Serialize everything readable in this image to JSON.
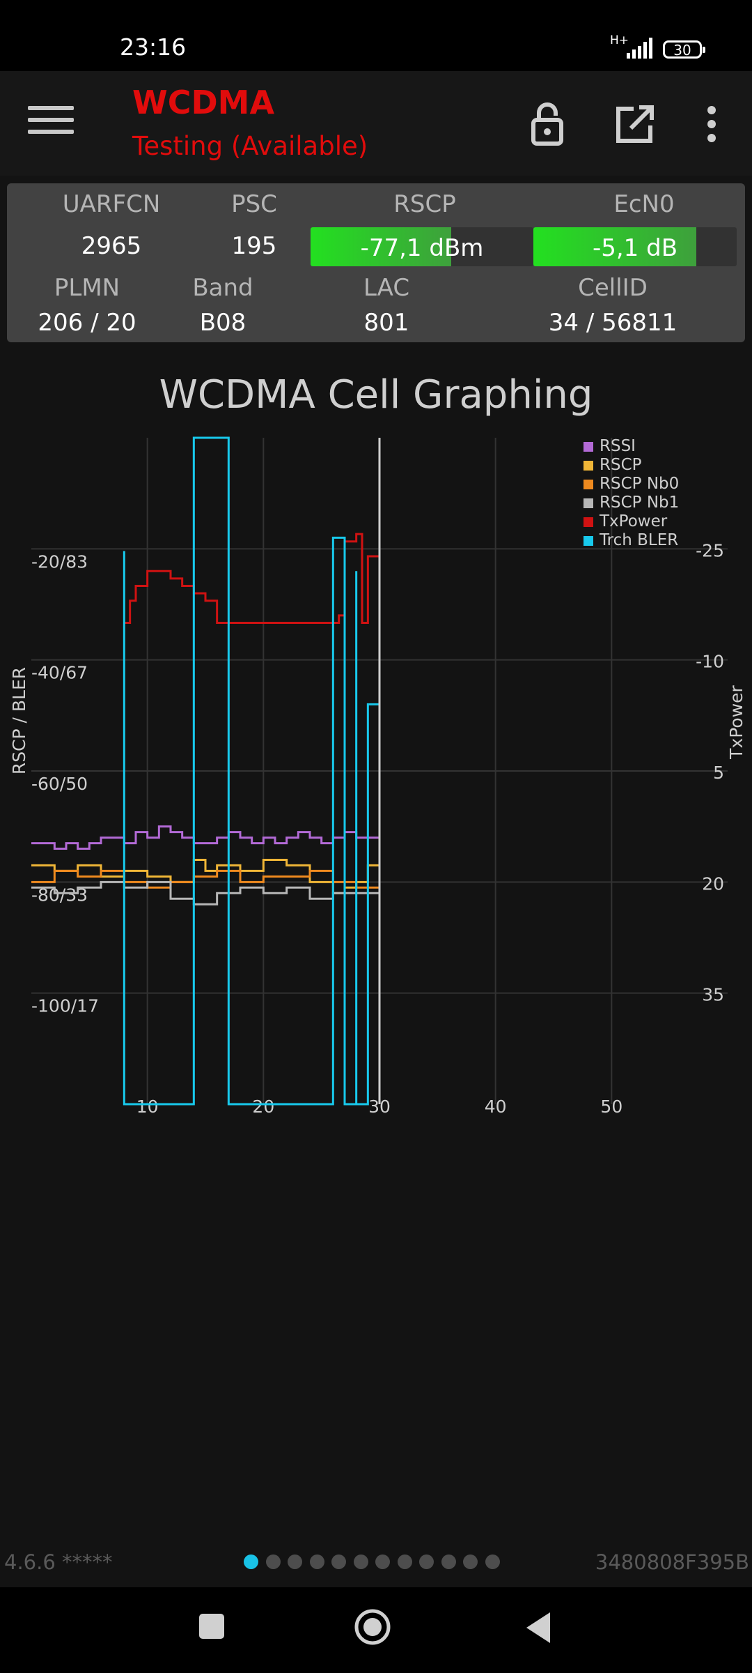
{
  "status": {
    "time": "23:16",
    "network": "H+",
    "battery": "30"
  },
  "header": {
    "title": "WCDMA",
    "subtitle": "Testing (Available)"
  },
  "icons": [
    "menu-icon",
    "lock-open-icon",
    "open-external-icon",
    "more-vert-icon"
  ],
  "cell": {
    "labels": {
      "uarfcn": "UARFCN",
      "psc": "PSC",
      "rscp": "RSCP",
      "ecn0": "EcN0",
      "plmn": "PLMN",
      "band": "Band",
      "lac": "LAC",
      "cellid": "CellID"
    },
    "uarfcn": "2965",
    "psc": "195",
    "rscp": "-77,1 dBm",
    "rscp_level": 0.63,
    "ecn0": "-5,1 dB",
    "ecn0_level": 0.8,
    "plmn": "206 / 20",
    "band": "B08",
    "lac": "801",
    "cellid": "34 / 56811"
  },
  "colors": {
    "accent_red": "#e10c0c",
    "meter_green": "#23e020",
    "pager_active": "#19c2e6"
  },
  "chart_data": {
    "type": "line",
    "title": "WCDMA Cell Graphing",
    "ylabel": "RSCP / BLER",
    "y2label": "TxPower",
    "x_ticks": [
      10,
      20,
      30,
      40,
      50
    ],
    "x_range": [
      0,
      60
    ],
    "y_ticks": [
      "-20/83",
      "-40/67",
      "-60/50",
      "-80/33",
      "-100/17"
    ],
    "y_tick_values": [
      -20,
      -40,
      -60,
      -80,
      -100
    ],
    "y_range": [
      0,
      -120
    ],
    "y2_ticks": [
      "-25",
      "-10",
      "5",
      "20",
      "35"
    ],
    "y2_tick_values": [
      -25,
      -10,
      5,
      20,
      35
    ],
    "cursor_x": 30,
    "legend_position": "top-right",
    "series": [
      {
        "name": "RSSI",
        "color": "#b36ad6",
        "x": [
          0,
          2,
          3,
          4,
          5,
          6,
          7,
          8,
          9,
          10,
          11,
          12,
          13,
          14,
          15,
          16,
          17,
          18,
          19,
          20,
          21,
          22,
          23,
          24,
          25,
          26,
          27,
          28,
          29,
          30
        ],
        "values": [
          -73,
          -74,
          -73,
          -74,
          -73,
          -72,
          -72,
          -73,
          -71,
          -72,
          -70,
          -71,
          -72,
          -73,
          -73,
          -72,
          -71,
          -72,
          -73,
          -72,
          -73,
          -72,
          -71,
          -72,
          -73,
          -72,
          -71,
          -72,
          -72,
          -72
        ]
      },
      {
        "name": "RSCP",
        "color": "#f0b637",
        "x": [
          0,
          2,
          4,
          6,
          8,
          10,
          12,
          14,
          15,
          16,
          18,
          20,
          22,
          24,
          26,
          27,
          28,
          29,
          30
        ],
        "values": [
          -77,
          -78,
          -77,
          -79,
          -78,
          -79,
          -80,
          -76,
          -78,
          -77,
          -78,
          -76,
          -77,
          -80,
          -82,
          -81,
          -80,
          -77,
          -76
        ]
      },
      {
        "name": "RSCP Nb0",
        "color": "#ef8a1f",
        "x": [
          0,
          2,
          4,
          6,
          8,
          10,
          12,
          14,
          16,
          18,
          20,
          22,
          24,
          26,
          28,
          30
        ],
        "values": [
          -80,
          -78,
          -79,
          -78,
          -80,
          -81,
          -80,
          -79,
          -78,
          -80,
          -79,
          -79,
          -78,
          -80,
          -81,
          -81
        ]
      },
      {
        "name": "RSCP Nb1",
        "color": "#b7b7b7",
        "x": [
          0,
          2,
          4,
          6,
          8,
          10,
          12,
          14,
          16,
          18,
          20,
          22,
          24,
          26,
          28,
          30
        ],
        "values": [
          -81,
          -82,
          -81,
          -80,
          -81,
          -80,
          -83,
          -84,
          -82,
          -81,
          -82,
          -81,
          -83,
          -82,
          -82,
          -81
        ]
      },
      {
        "name": "TxPower",
        "color": "#d01212",
        "x": [
          8,
          8.5,
          9,
          10,
          11,
          12,
          13,
          14,
          15,
          16,
          17,
          18,
          26.5,
          27,
          28,
          28.5,
          29,
          30
        ],
        "values": [
          -15,
          -18,
          -20,
          -22,
          -22,
          -21,
          -20,
          -19,
          -18,
          -15,
          -15,
          -15,
          -16,
          -26,
          -27,
          -15,
          -24,
          -23
        ]
      },
      {
        "name": "Trch BLER",
        "color": "#18c9ec",
        "x": [
          8,
          8,
          9,
          10,
          11,
          12,
          13,
          14,
          14,
          15,
          16,
          17,
          17,
          18,
          26,
          26,
          27,
          28,
          28,
          29,
          29,
          30
        ],
        "values": [
          83,
          0,
          0,
          0,
          0,
          0,
          0,
          0,
          100,
          100,
          100,
          100,
          0,
          0,
          0,
          85,
          0,
          80,
          0,
          0,
          60,
          0
        ]
      }
    ]
  },
  "footer": {
    "version": "4.6.6 *****",
    "device_id": "3480808F395B",
    "page_count": 12,
    "active_page": 1
  }
}
